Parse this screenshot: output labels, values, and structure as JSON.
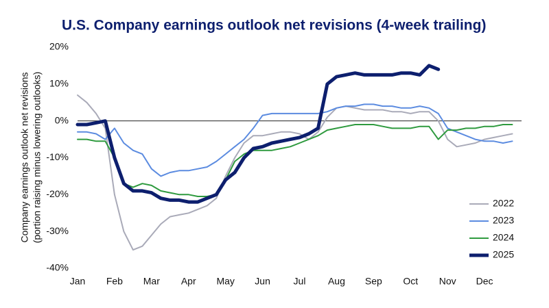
{
  "chart_data": {
    "type": "line",
    "title": "U.S. Company earnings outlook net revisions (4-week trailing)",
    "ylabel": [
      "Company earnings outlook net revisions",
      "(portion raising minus lowering outlooks)"
    ],
    "categories": [
      "Jan",
      null,
      null,
      null,
      "Feb",
      null,
      null,
      null,
      "Mar",
      null,
      null,
      null,
      "Apr",
      null,
      null,
      null,
      "May",
      null,
      null,
      null,
      "Jun",
      null,
      null,
      null,
      "Jul",
      null,
      null,
      null,
      "Aug",
      null,
      null,
      null,
      "Sep",
      null,
      null,
      null,
      "Oct",
      null,
      null,
      null,
      "Nov",
      null,
      null,
      null,
      "Dec",
      null,
      null,
      null
    ],
    "ylim": [
      -40,
      20
    ],
    "yticks": [
      {
        "value": -40,
        "label": "-40%"
      },
      {
        "value": -30,
        "label": "-30%"
      },
      {
        "value": -20,
        "label": "-20%"
      },
      {
        "value": -10,
        "label": "-10%"
      },
      {
        "value": 0,
        "label": "0%"
      },
      {
        "value": 10,
        "label": "10%"
      },
      {
        "value": 20,
        "label": "20%"
      }
    ],
    "zero_line": true,
    "legend": "lower right",
    "series": [
      {
        "name": "2022",
        "color": "#a9aab8",
        "values": [
          7,
          5,
          2,
          -2,
          -20,
          -30,
          -35,
          -34,
          -31,
          -28,
          -26,
          -25.5,
          -25,
          -24,
          -23,
          -21,
          -15,
          -10,
          -6,
          -4,
          -4,
          -3.5,
          -3,
          -3,
          -3.5,
          -5,
          -3,
          1,
          3.5,
          4,
          3.5,
          3,
          3,
          3,
          2.5,
          2.5,
          2,
          2.5,
          2.5,
          0,
          -5,
          -7,
          -6.5,
          -6,
          -5,
          -4.5,
          -4,
          -3.5
        ]
      },
      {
        "name": "2023",
        "color": "#5b8be0",
        "values": [
          -3,
          -3,
          -3.5,
          -5,
          -2,
          -6,
          -8,
          -9,
          -13,
          -15,
          -14,
          -13.5,
          -13.5,
          -13,
          -12.5,
          -11,
          -9,
          -7,
          -5,
          -2,
          1.5,
          2,
          2,
          2,
          2,
          2,
          2,
          2.5,
          3.5,
          4,
          4,
          4.5,
          4.5,
          4,
          4,
          3.5,
          3.5,
          4,
          3.5,
          2,
          -2,
          -3,
          -4,
          -5,
          -5.5,
          -5.5,
          -6,
          -5.5
        ]
      },
      {
        "name": "2024",
        "color": "#2e9a3e",
        "values": [
          -5,
          -5,
          -5.5,
          -5.5,
          -10,
          -17,
          -18,
          -17,
          -17.5,
          -19,
          -19.5,
          -20,
          -20,
          -20.5,
          -20.5,
          -20,
          -16,
          -11,
          -9,
          -8,
          -8,
          -8,
          -7.5,
          -7,
          -6,
          -5,
          -4,
          -2.5,
          -2,
          -1.5,
          -1,
          -1,
          -1,
          -1.5,
          -2,
          -2,
          -2,
          -1.5,
          -1.5,
          -5,
          -2.5,
          -2.5,
          -2,
          -2,
          -1.5,
          -1.5,
          -1,
          -1
        ]
      },
      {
        "name": "2025",
        "color": "#0d1f6e",
        "values": [
          -1,
          -1,
          -0.5,
          0,
          -10,
          -17,
          -19,
          -19,
          -19.5,
          -21,
          -21.5,
          -21.5,
          -22,
          -22,
          -21,
          -20,
          -16,
          -14,
          -10,
          -7.5,
          -7,
          -6,
          -5.5,
          -5,
          -4.5,
          -3.5,
          -2,
          10,
          12,
          12.5,
          13,
          12.5,
          12.5,
          12.5,
          12.5,
          13,
          13,
          12.5,
          15,
          14,
          null,
          null,
          null,
          null,
          null,
          null,
          null,
          null
        ]
      }
    ]
  }
}
